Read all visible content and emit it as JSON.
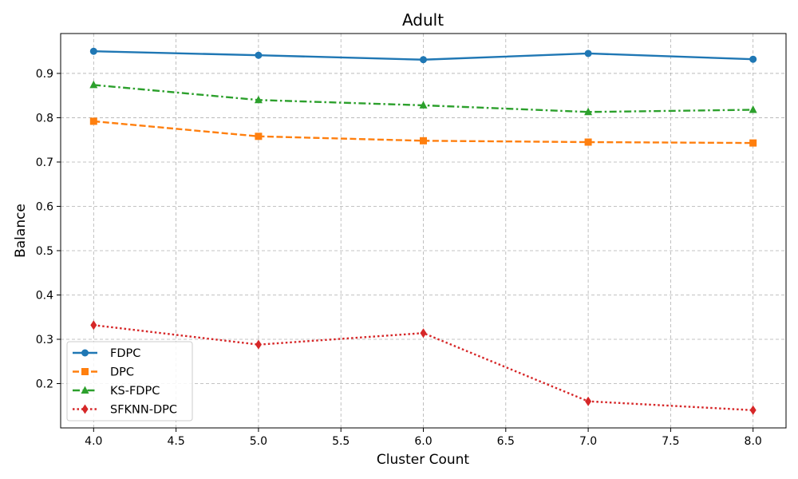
{
  "chart_data": {
    "type": "line",
    "title": "Adult",
    "xlabel": "Cluster Count",
    "ylabel": "Balance",
    "xlim": [
      3.8,
      8.2
    ],
    "ylim": [
      0.1,
      0.99
    ],
    "xticks": [
      "4.0",
      "4.5",
      "5.0",
      "5.5",
      "6.0",
      "6.5",
      "7.0",
      "7.5",
      "8.0"
    ],
    "yticks": [
      "0.2",
      "0.3",
      "0.4",
      "0.5",
      "0.6",
      "0.7",
      "0.8",
      "0.9"
    ],
    "grid": true,
    "legend_position": "lower-left",
    "x": [
      4,
      5,
      6,
      7,
      8
    ],
    "series": [
      {
        "name": "FDPC",
        "values": [
          0.95,
          0.941,
          0.931,
          0.945,
          0.932
        ],
        "color": "#1f77b4",
        "marker": "circle",
        "dash": "solid"
      },
      {
        "name": "DPC",
        "values": [
          0.792,
          0.758,
          0.748,
          0.745,
          0.743
        ],
        "color": "#ff7f0e",
        "marker": "square",
        "dash": "dashed"
      },
      {
        "name": "KS-FDPC",
        "values": [
          0.874,
          0.84,
          0.828,
          0.813,
          0.818
        ],
        "color": "#2ca02c",
        "marker": "triangle",
        "dash": "dashdot"
      },
      {
        "name": "SFKNN-DPC",
        "values": [
          0.332,
          0.288,
          0.314,
          0.16,
          0.14
        ],
        "color": "#d62728",
        "marker": "diamond",
        "dash": "dotted"
      }
    ]
  }
}
